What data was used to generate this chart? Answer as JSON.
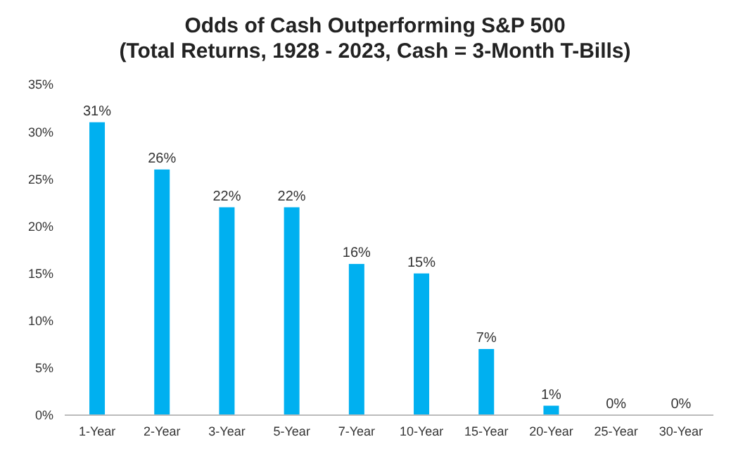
{
  "chart_data": {
    "type": "bar",
    "title": "Odds of Cash Outperforming S&P 500",
    "subtitle": "(Total Returns, 1928 - 2023, Cash = 3-Month T-Bills)",
    "categories": [
      "1-Year",
      "2-Year",
      "3-Year",
      "5-Year",
      "7-Year",
      "10-Year",
      "15-Year",
      "20-Year",
      "25-Year",
      "30-Year"
    ],
    "values": [
      31,
      26,
      22,
      22,
      16,
      15,
      7,
      1,
      0,
      0
    ],
    "color": "#00b0f0",
    "ylim": [
      0,
      35
    ],
    "yticks": [
      {
        "value": 0,
        "label": "0%"
      },
      {
        "value": 5,
        "label": "5%"
      },
      {
        "value": 10,
        "label": "10%"
      },
      {
        "value": 15,
        "label": "15%"
      },
      {
        "value": 20,
        "label": "20%"
      },
      {
        "value": 25,
        "label": "25%"
      },
      {
        "value": 30,
        "label": "30%"
      },
      {
        "value": 35,
        "label": "35%"
      }
    ],
    "value_labels": [
      "31%",
      "26%",
      "22%",
      "22%",
      "16%",
      "15%",
      "7%",
      "1%",
      "0%",
      "0%"
    ],
    "grid": false
  }
}
